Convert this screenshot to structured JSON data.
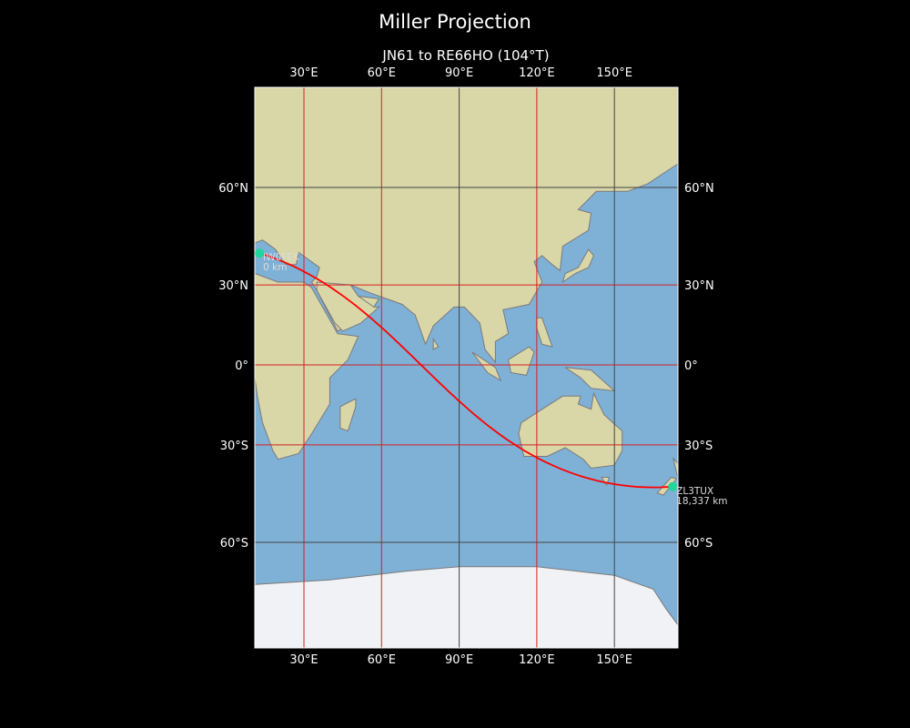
{
  "title": "Miller Projection",
  "subtitle": "JN61 to RE66HO (104°T)",
  "map": {
    "projection": "Miller",
    "extent": {
      "lon": [
        11,
        174.6
      ],
      "lat": [
        -82,
        81
      ]
    },
    "colors": {
      "ocean": "#7fb0d6",
      "land": "#d9d6a8",
      "ice": "#f0f2f5",
      "coast": "#7a7a7a",
      "path": "#ff0000",
      "marker": "#1ed79a",
      "grid_major": "#d42020",
      "grid_minor": "#444444"
    },
    "gridlines": {
      "lon": [
        {
          "value": 30,
          "label": "30°E",
          "color": "red"
        },
        {
          "value": 60,
          "label": "60°E",
          "color": "red"
        },
        {
          "value": 90,
          "label": "90°E",
          "color": "gray"
        },
        {
          "value": 120,
          "label": "120°E",
          "color": "red"
        },
        {
          "value": 150,
          "label": "150°E",
          "color": "gray"
        }
      ],
      "lat": [
        {
          "value": 60,
          "label": "60°N",
          "color": "gray"
        },
        {
          "value": 30,
          "label": "30°N",
          "color": "red"
        },
        {
          "value": 0,
          "label": "0°",
          "color": "red"
        },
        {
          "value": -30,
          "label": "30°S",
          "color": "red"
        },
        {
          "value": -60,
          "label": "60°S",
          "color": "gray"
        }
      ]
    },
    "start": {
      "call": "IW0FEK",
      "distance": "0 km",
      "lon": 12.8,
      "lat": 40.8
    },
    "end": {
      "call": "ZL3TUX",
      "distance": "18,337 km",
      "lon": 172.5,
      "lat": -44.0
    }
  }
}
